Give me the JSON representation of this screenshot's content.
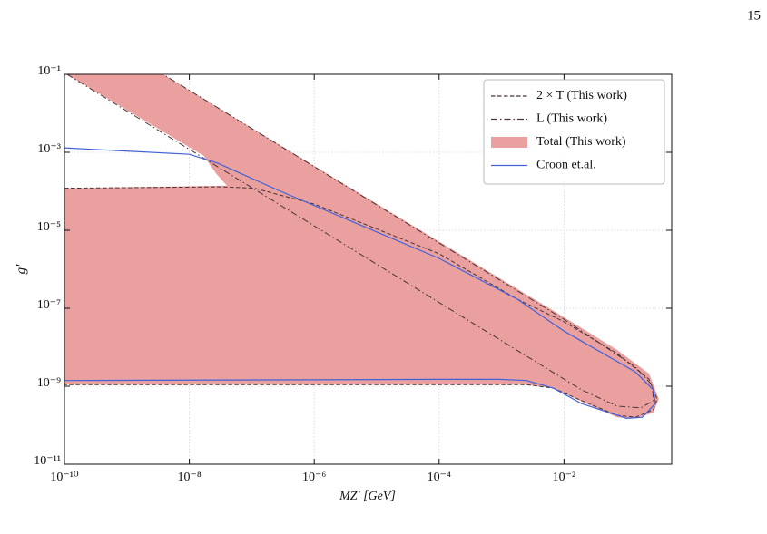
{
  "page_number": "15",
  "chart_data": {
    "type": "line",
    "xscale": "log",
    "yscale": "log",
    "xlabel": "MZ′ [GeV]",
    "ylabel": "g′",
    "xlim": [
      1e-10,
      0.53
    ],
    "ylim": [
      1e-11,
      0.1
    ],
    "xticks": [
      {
        "value": 1e-10,
        "label": "10⁻¹⁰"
      },
      {
        "value": 1e-08,
        "label": "10⁻⁸"
      },
      {
        "value": 1e-06,
        "label": "10⁻⁶"
      },
      {
        "value": 0.0001,
        "label": "10⁻⁴"
      },
      {
        "value": 0.01,
        "label": "10⁻²"
      }
    ],
    "yticks": [
      {
        "value": 1e-11,
        "label": "10⁻¹¹"
      },
      {
        "value": 1e-09,
        "label": "10⁻⁹"
      },
      {
        "value": 1e-07,
        "label": "10⁻⁷"
      },
      {
        "value": 1e-05,
        "label": "10⁻⁵"
      },
      {
        "value": 0.001,
        "label": "10⁻³"
      },
      {
        "value": 0.1,
        "label": "10⁻¹"
      }
    ],
    "grid": true,
    "legend": "upper right",
    "series": [
      {
        "name": "2 × T (This work)",
        "color": "#4a3434",
        "linestyle": "dashed",
        "fill": false,
        "x": [
          1e-10,
          3.4e-08,
          1.1e-07,
          1e-06,
          0.0001,
          0.0018,
          0.01,
          0.071,
          0.23,
          0.31,
          0.27,
          0.14,
          0.071,
          0.019,
          0.0068,
          0.0025,
          0.0001,
          1e-10
        ],
        "y": [
          0.00012,
          0.00013,
          0.00012,
          4.7e-05,
          2.5e-06,
          1.7e-07,
          4.5e-08,
          6.9e-09,
          1.5e-09,
          4.7e-10,
          2.5e-10,
          1.6e-10,
          1.8e-10,
          4.3e-10,
          8.9e-10,
          1.1e-09,
          1.1e-09,
          1.1e-09
        ]
      },
      {
        "name": "L (This work)",
        "color": "#4a3434",
        "linestyle": "dashdot",
        "fill": false,
        "x": [
          1.1e-10,
          0.019,
          0.071,
          0.17,
          0.27,
          0.26,
          0.14,
          0.01,
          3.8e-09
        ],
        "y": [
          0.1,
          8.1e-10,
          3.1e-10,
          2.8e-10,
          4.3e-10,
          1.05e-09,
          3.1e-09,
          5.2e-08,
          0.1
        ]
      },
      {
        "name": "Total (This work)",
        "color": "#eba0a0",
        "linestyle": "none",
        "fill": true,
        "x": [
          1e-10,
          3.8e-09,
          0.01,
          0.071,
          0.23,
          0.33,
          0.27,
          0.14,
          0.071,
          0.019,
          0.0068,
          0.0025,
          1e-10,
          1e-10,
          4e-08,
          2.7e-08,
          1.7e-08,
          1.1e-10
        ],
        "y": [
          0.1,
          0.1,
          5.9e-08,
          8.5e-09,
          2.1e-09,
          4.7e-10,
          2.1e-10,
          1.5e-10,
          1.6e-10,
          4.1e-10,
          8.9e-10,
          1.1e-09,
          1.1e-09,
          0.00012,
          0.00014,
          0.00028,
          0.00081,
          0.1
        ]
      },
      {
        "name": "Croon et.al.",
        "color": "#4062d8",
        "linestyle": "solid",
        "fill": false,
        "x": [
          1e-10,
          1e-08,
          2.9e-08,
          2.9e-07,
          0.0001,
          0.0018,
          0.01,
          0.14,
          0.27,
          0.29,
          0.18,
          0.1,
          0.019,
          0.0068,
          0.0025,
          0.00091,
          0.0001,
          1e-10
        ],
        "y": [
          0.0013,
          0.00089,
          0.00052,
          0.0001,
          1.9e-06,
          1.7e-07,
          2.6e-08,
          2.3e-09,
          8.1e-10,
          3.6e-10,
          1.6e-10,
          1.5e-10,
          3.6e-10,
          8.9e-10,
          1.4e-09,
          1.5e-09,
          1.5e-09,
          1.4e-09
        ]
      }
    ]
  }
}
